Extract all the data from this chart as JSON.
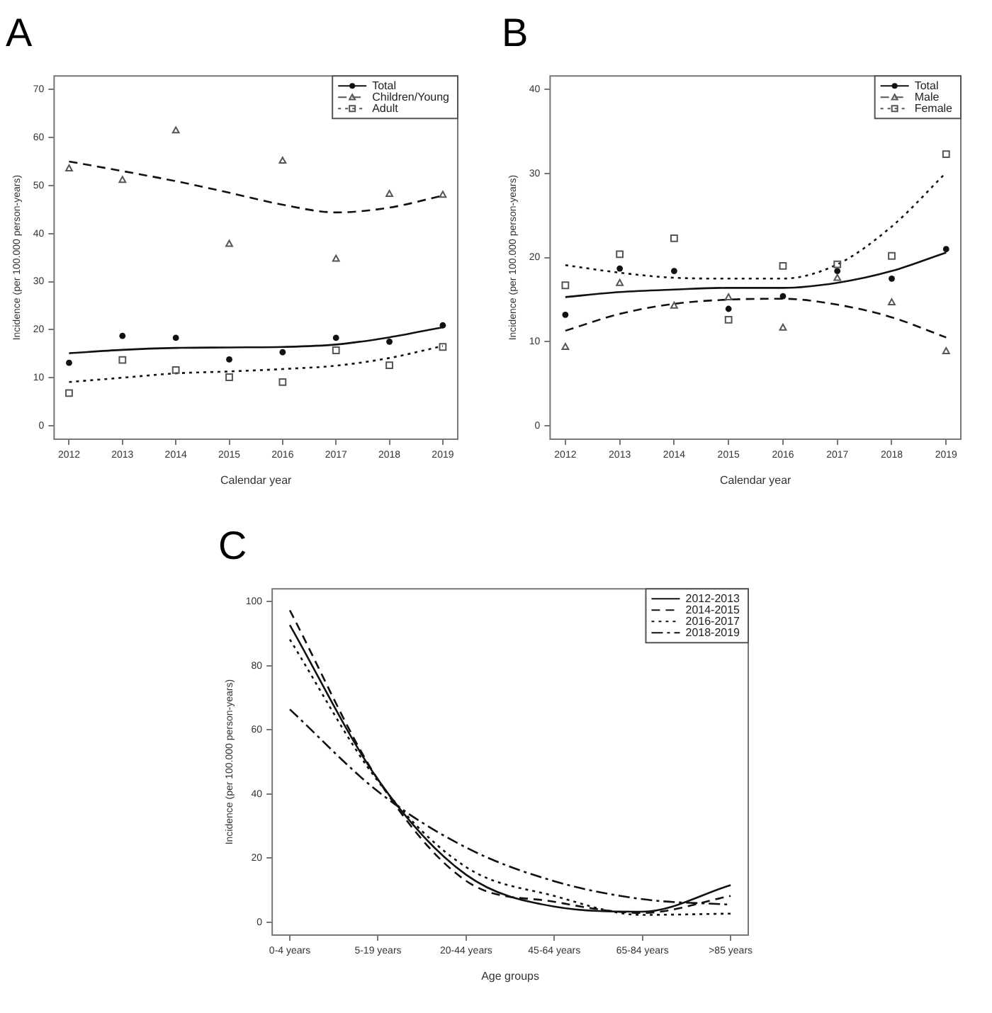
{
  "chart_data": [
    {
      "type": "scatter",
      "title": "A",
      "xlabel": "Calendar year",
      "ylabel": "Incidence (per 100.000 person-years)",
      "x": [
        2012,
        2013,
        2014,
        2015,
        2016,
        2017,
        2018,
        2019
      ],
      "xlim": [
        2011.72,
        2019.28
      ],
      "xticks": [
        2012,
        2013,
        2014,
        2015,
        2016,
        2017,
        2018,
        2019
      ],
      "ylim": [
        -2.8,
        72.8
      ],
      "yticks": [
        0,
        10,
        20,
        30,
        40,
        50,
        60,
        70
      ],
      "grid": false,
      "legend": "top right",
      "series": [
        {
          "name": "Total",
          "marker": "circle",
          "color": "#111111",
          "values": [
            13.1,
            18.7,
            18.3,
            13.8,
            15.3,
            18.3,
            17.5,
            20.9
          ]
        },
        {
          "name": "Children/Young",
          "marker": "triangle",
          "color": "#555555",
          "values": [
            53.6,
            51.2,
            61.5,
            37.9,
            55.2,
            34.8,
            48.3,
            48.1
          ]
        },
        {
          "name": "Adult",
          "marker": "square",
          "color": "#555555",
          "values": [
            6.8,
            13.7,
            11.6,
            10.1,
            9.1,
            15.7,
            12.6,
            16.4
          ]
        },
        {
          "type": "line",
          "marker": "none",
          "line_style": "solid",
          "color": "#111111",
          "values": [
            15.1,
            15.8,
            16.2,
            16.3,
            16.4,
            16.9,
            18.4,
            20.5
          ]
        },
        {
          "type": "line",
          "marker": "none",
          "line_style": "dashed",
          "color": "#111111",
          "values": [
            55.0,
            53.0,
            50.9,
            48.5,
            46.0,
            44.4,
            45.4,
            47.9
          ]
        },
        {
          "type": "line",
          "marker": "none",
          "line_style": "dotted",
          "color": "#111111",
          "values": [
            9.1,
            10.0,
            10.9,
            11.3,
            11.8,
            12.5,
            14.1,
            16.6
          ]
        }
      ]
    },
    {
      "type": "scatter",
      "title": "B",
      "xlabel": "Calendar year",
      "ylabel": "Incidence (per 100.000 person-years)",
      "x": [
        2012,
        2013,
        2014,
        2015,
        2016,
        2017,
        2018,
        2019
      ],
      "xlim": [
        2011.72,
        2019.27
      ],
      "xticks": [
        2012,
        2013,
        2014,
        2015,
        2016,
        2017,
        2018,
        2019
      ],
      "ylim": [
        -1.6,
        41.6
      ],
      "yticks": [
        0,
        10,
        20,
        30,
        40
      ],
      "grid": false,
      "legend": "top right",
      "series": [
        {
          "name": "Total",
          "marker": "circle",
          "color": "#111111",
          "values": [
            13.2,
            18.7,
            18.4,
            13.9,
            15.4,
            18.4,
            17.5,
            21.0
          ]
        },
        {
          "name": "Male",
          "marker": "triangle",
          "color": "#555555",
          "values": [
            9.4,
            17.0,
            14.3,
            15.3,
            11.7,
            17.6,
            14.7,
            8.9
          ]
        },
        {
          "name": "Female",
          "marker": "square",
          "color": "#555555",
          "values": [
            16.7,
            20.4,
            22.3,
            12.6,
            19.0,
            19.2,
            20.2,
            32.3
          ]
        },
        {
          "type": "line",
          "marker": "none",
          "line_style": "solid",
          "color": "#111111",
          "values": [
            15.3,
            15.9,
            16.2,
            16.4,
            16.4,
            17.0,
            18.4,
            20.6
          ]
        },
        {
          "type": "line",
          "marker": "none",
          "line_style": "dashed",
          "color": "#111111",
          "values": [
            11.3,
            13.3,
            14.5,
            15.0,
            15.1,
            14.4,
            12.9,
            10.5
          ]
        },
        {
          "type": "line",
          "marker": "none",
          "line_style": "dotted",
          "color": "#111111",
          "values": [
            19.1,
            18.2,
            17.6,
            17.5,
            17.5,
            19.2,
            23.7,
            30.1
          ]
        }
      ]
    },
    {
      "type": "line",
      "title": "C",
      "xlabel": "Age groups",
      "ylabel": "Incidence (per 100.000 person-years)",
      "categories": [
        "0-4 years",
        "5-19 years",
        "20-44 years",
        "45-64 years",
        "65-84 years",
        ">85 years"
      ],
      "ylim": [
        -4,
        104
      ],
      "yticks": [
        0,
        20,
        40,
        60,
        80,
        100
      ],
      "grid": false,
      "legend": "top right",
      "marker": "none",
      "series": [
        {
          "name": "2012-2013",
          "line_style": "solid",
          "color": "#111111",
          "values": [
            92.7,
            44.5,
            14.8,
            4.9,
            3.3,
            11.6
          ]
        },
        {
          "name": "2014-2015",
          "line_style": "dashed",
          "color": "#111111",
          "values": [
            97.3,
            44.5,
            12.9,
            6.4,
            2.9,
            8.2
          ]
        },
        {
          "name": "2016-2017",
          "line_style": "dotted",
          "color": "#111111",
          "values": [
            88.2,
            44.0,
            17.2,
            8.2,
            2.3,
            2.7
          ]
        },
        {
          "name": "2018-2019",
          "line_style": "dashdot",
          "color": "#111111",
          "values": [
            66.4,
            40.8,
            23.3,
            12.8,
            7.2,
            5.5
          ]
        }
      ]
    }
  ]
}
